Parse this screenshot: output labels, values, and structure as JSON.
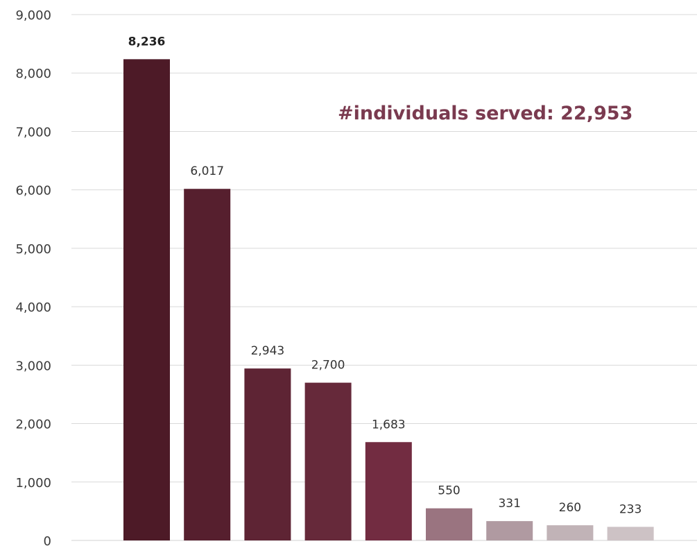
{
  "chart_data": {
    "type": "bar",
    "title": "",
    "xlabel": "",
    "ylabel": "",
    "ylim": [
      0,
      9000
    ],
    "yticks": [
      0,
      1000,
      2000,
      3000,
      4000,
      5000,
      6000,
      7000,
      8000,
      9000
    ],
    "ytick_labels": [
      "0",
      "1,000",
      "2,000",
      "3,000",
      "4,000",
      "5,000",
      "6,000",
      "7,000",
      "8,000",
      "9,000"
    ],
    "grid": true,
    "values": [
      8236,
      6017,
      2943,
      2700,
      1683,
      550,
      331,
      260,
      233
    ],
    "value_labels": [
      "8,236",
      "6,017",
      "2,943",
      "2,700",
      "1,683",
      "550",
      "331",
      "260",
      "233"
    ],
    "colors": [
      "#4d1a27",
      "#561f2e",
      "#5e2434",
      "#66293a",
      "#722c41",
      "#9a7480",
      "#b09aa1",
      "#c1b3b7",
      "#cdc2c5"
    ],
    "annotation": "#individuals served: 22,953",
    "annotation_color": "#7a3a4f"
  }
}
